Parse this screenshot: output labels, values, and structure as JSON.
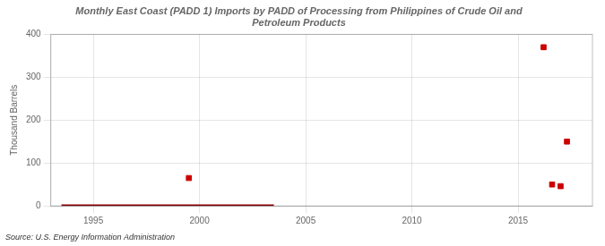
{
  "chart_data": {
    "type": "scatter",
    "title": "Monthly East Coast (PADD 1) Imports by PADD of Processing from Philippines of Crude Oil and\nPetroleum Products",
    "ylabel": "Thousand Barrels",
    "source": "Source: U.S. Energy Information Administration",
    "xlim": [
      1993.0,
      2018.5
    ],
    "ylim": [
      0,
      400
    ],
    "xticks": [
      1995,
      2000,
      2005,
      2010,
      2015
    ],
    "yticks": [
      0,
      100,
      200,
      300,
      400
    ],
    "grid": true,
    "series": [
      {
        "type": "line",
        "color": "#8b0000",
        "line_style": "solid",
        "x": [
          1993.5,
          2003.5
        ],
        "values": [
          1.5,
          1.5
        ]
      },
      {
        "type": "scatter",
        "color": "#cc0000",
        "marker": "square",
        "x": [
          1999.5,
          2016.2,
          2017.3,
          2016.6,
          2017.0
        ],
        "values": [
          65,
          370,
          150,
          50,
          46
        ]
      }
    ]
  }
}
